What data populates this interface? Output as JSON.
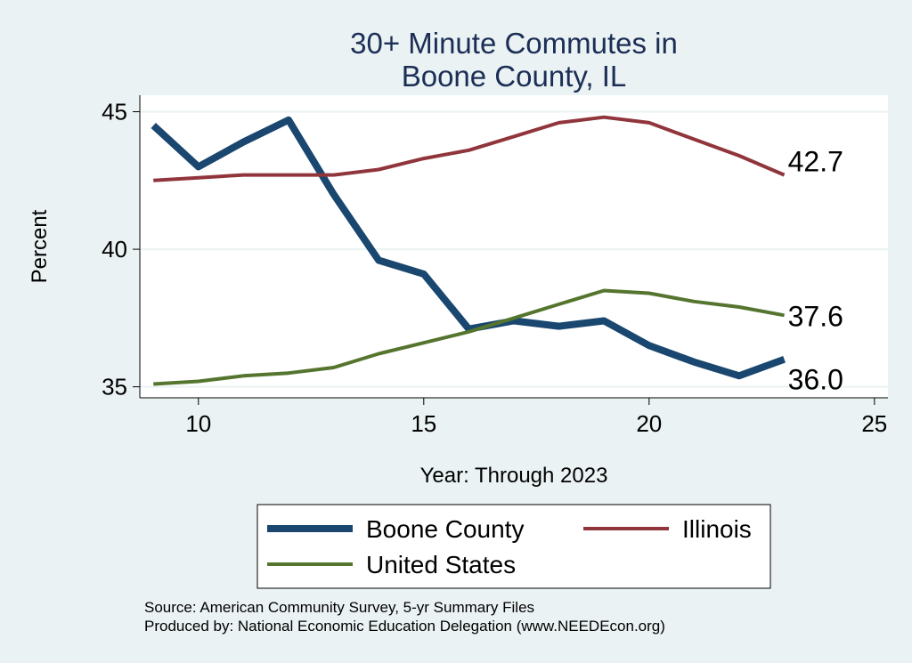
{
  "chart_data": {
    "type": "line",
    "title": [
      "30+ Minute Commutes in",
      "Boone County, IL"
    ],
    "xlabel": "Year: Through 2023",
    "ylabel": "Percent",
    "xlim": [
      8.7,
      25.3
    ],
    "ylim": [
      34.6,
      45.6
    ],
    "xticks": [
      10,
      15,
      20,
      25
    ],
    "yticks": [
      35,
      40,
      45
    ],
    "grid": true,
    "legend_position": "bottom",
    "series": [
      {
        "name": "Boone County",
        "color": "#1A476F",
        "x": [
          9,
          10,
          11,
          12,
          13,
          14,
          15,
          16,
          17,
          18,
          19,
          20,
          21,
          22,
          23
        ],
        "values": [
          44.5,
          43.0,
          43.9,
          44.7,
          42.0,
          39.6,
          39.1,
          37.1,
          37.4,
          37.2,
          37.4,
          36.5,
          35.9,
          35.4,
          36.0
        ],
        "end_label": "36.0"
      },
      {
        "name": "Illinois",
        "color": "#90353B",
        "x": [
          9,
          10,
          11,
          12,
          13,
          14,
          15,
          16,
          17,
          18,
          19,
          20,
          21,
          22,
          23
        ],
        "values": [
          42.5,
          42.6,
          42.7,
          42.7,
          42.7,
          42.9,
          43.3,
          43.6,
          44.1,
          44.6,
          44.8,
          44.6,
          44.0,
          43.4,
          42.7
        ],
        "end_label": "42.7"
      },
      {
        "name": "United States",
        "color": "#55752F",
        "x": [
          9,
          10,
          11,
          12,
          13,
          14,
          15,
          16,
          17,
          18,
          19,
          20,
          21,
          22,
          23
        ],
        "values": [
          35.1,
          35.2,
          35.4,
          35.5,
          35.7,
          36.2,
          36.6,
          37.0,
          37.5,
          38.0,
          38.5,
          38.4,
          38.1,
          37.9,
          37.6
        ],
        "end_label": "37.6"
      }
    ],
    "notes": [
      "Source: American Community Survey, 5-yr Summary Files",
      "Produced by: National Economic Education Delegation (www.NEEDEcon.org)"
    ]
  }
}
